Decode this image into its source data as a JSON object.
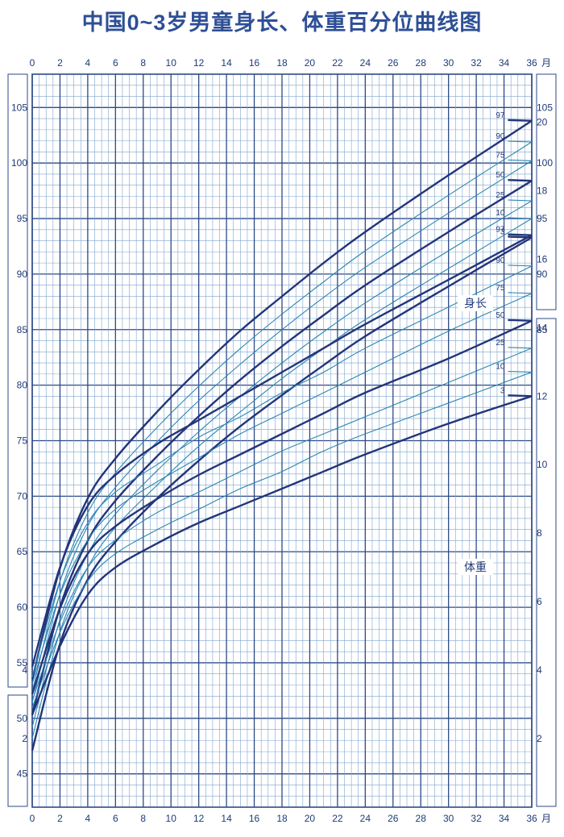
{
  "chart_data": {
    "type": "line",
    "title": "中国0~3岁男童身长、体重百分位曲线图",
    "x_unit": "月",
    "x_range": [
      0,
      36
    ],
    "x_ticks": [
      0,
      2,
      4,
      6,
      8,
      10,
      12,
      14,
      16,
      18,
      20,
      22,
      24,
      26,
      28,
      30,
      32,
      34,
      36
    ],
    "length": {
      "label": "身长",
      "ylim": [
        42,
        108
      ],
      "left_ticks": [
        45,
        50,
        55,
        60,
        65,
        70,
        75,
        80,
        85,
        90,
        95,
        100,
        105
      ],
      "right_ticks": [
        85,
        90,
        95,
        100,
        105
      ],
      "x": [
        0,
        2,
        4,
        6,
        9,
        12,
        15,
        18,
        21,
        24,
        30,
        36
      ],
      "series": [
        {
          "name": "97",
          "values": [
            53.5,
            63.5,
            69.8,
            73.4,
            77.6,
            81.4,
            84.9,
            88.0,
            91.0,
            93.8,
            98.9,
            103.8
          ]
        },
        {
          "name": "90",
          "values": [
            52.4,
            62.3,
            68.5,
            72.1,
            76.2,
            79.9,
            83.3,
            86.4,
            89.3,
            92.1,
            97.1,
            101.9
          ]
        },
        {
          "name": "75",
          "values": [
            51.4,
            61.2,
            67.3,
            70.8,
            74.9,
            78.6,
            81.9,
            85.0,
            87.9,
            90.6,
            95.5,
            100.2
          ]
        },
        {
          "name": "50",
          "values": [
            50.3,
            60.0,
            66.0,
            69.6,
            73.6,
            77.2,
            80.5,
            83.5,
            86.3,
            89.0,
            93.8,
            98.4
          ]
        },
        {
          "name": "25",
          "values": [
            49.2,
            58.9,
            64.8,
            68.4,
            72.3,
            75.8,
            79.0,
            82.0,
            84.8,
            87.4,
            92.1,
            96.6
          ]
        },
        {
          "name": "10",
          "values": [
            48.2,
            57.8,
            63.6,
            67.2,
            71.0,
            74.5,
            77.6,
            80.6,
            83.3,
            85.9,
            90.5,
            95.0
          ]
        },
        {
          "name": "3",
          "values": [
            47.1,
            56.7,
            62.5,
            65.9,
            69.8,
            73.2,
            76.3,
            79.1,
            81.8,
            84.4,
            88.9,
            93.3
          ]
        }
      ]
    },
    "weight": {
      "label": "体重",
      "left_ticks": [
        2,
        4
      ],
      "right_ticks": [
        2,
        4,
        6,
        8,
        10,
        12,
        14,
        16,
        18,
        20
      ],
      "right_ylim": [
        0,
        21.4
      ],
      "x": [
        0,
        2,
        4,
        6,
        9,
        12,
        15,
        18,
        21,
        24,
        30,
        36
      ],
      "series": [
        {
          "name": "97",
          "values": [
            4.1,
            7.0,
            8.8,
            9.7,
            10.6,
            11.3,
            12.0,
            12.7,
            13.4,
            14.1,
            15.4,
            16.7
          ]
        },
        {
          "name": "90",
          "values": [
            3.8,
            6.6,
            8.3,
            9.2,
            10.0,
            10.8,
            11.4,
            12.1,
            12.7,
            13.4,
            14.6,
            15.8
          ]
        },
        {
          "name": "75",
          "values": [
            3.6,
            6.2,
            7.8,
            8.7,
            9.5,
            10.2,
            10.9,
            11.5,
            12.1,
            12.7,
            13.9,
            15.0
          ]
        },
        {
          "name": "50",
          "values": [
            3.3,
            5.8,
            7.4,
            8.2,
            9.0,
            9.7,
            10.3,
            10.9,
            11.5,
            12.1,
            13.1,
            14.2
          ]
        },
        {
          "name": "25",
          "values": [
            3.1,
            5.4,
            7.0,
            7.8,
            8.6,
            9.2,
            9.8,
            10.4,
            10.9,
            11.4,
            12.4,
            13.4
          ]
        },
        {
          "name": "10",
          "values": [
            2.9,
            5.1,
            6.6,
            7.4,
            8.1,
            8.7,
            9.3,
            9.8,
            10.4,
            10.9,
            11.8,
            12.7
          ]
        },
        {
          "name": "3",
          "values": [
            2.7,
            4.7,
            6.2,
            7.0,
            7.7,
            8.3,
            8.8,
            9.3,
            9.8,
            10.3,
            11.2,
            12.0
          ]
        }
      ]
    },
    "colors": {
      "title": "#2e4f96",
      "major_grid": "#2d4a86",
      "minor_grid": "#7fa3cc",
      "key_curve": "#23357a",
      "thin_curve": "#2b86b3",
      "text": "#1f3a7a"
    }
  }
}
